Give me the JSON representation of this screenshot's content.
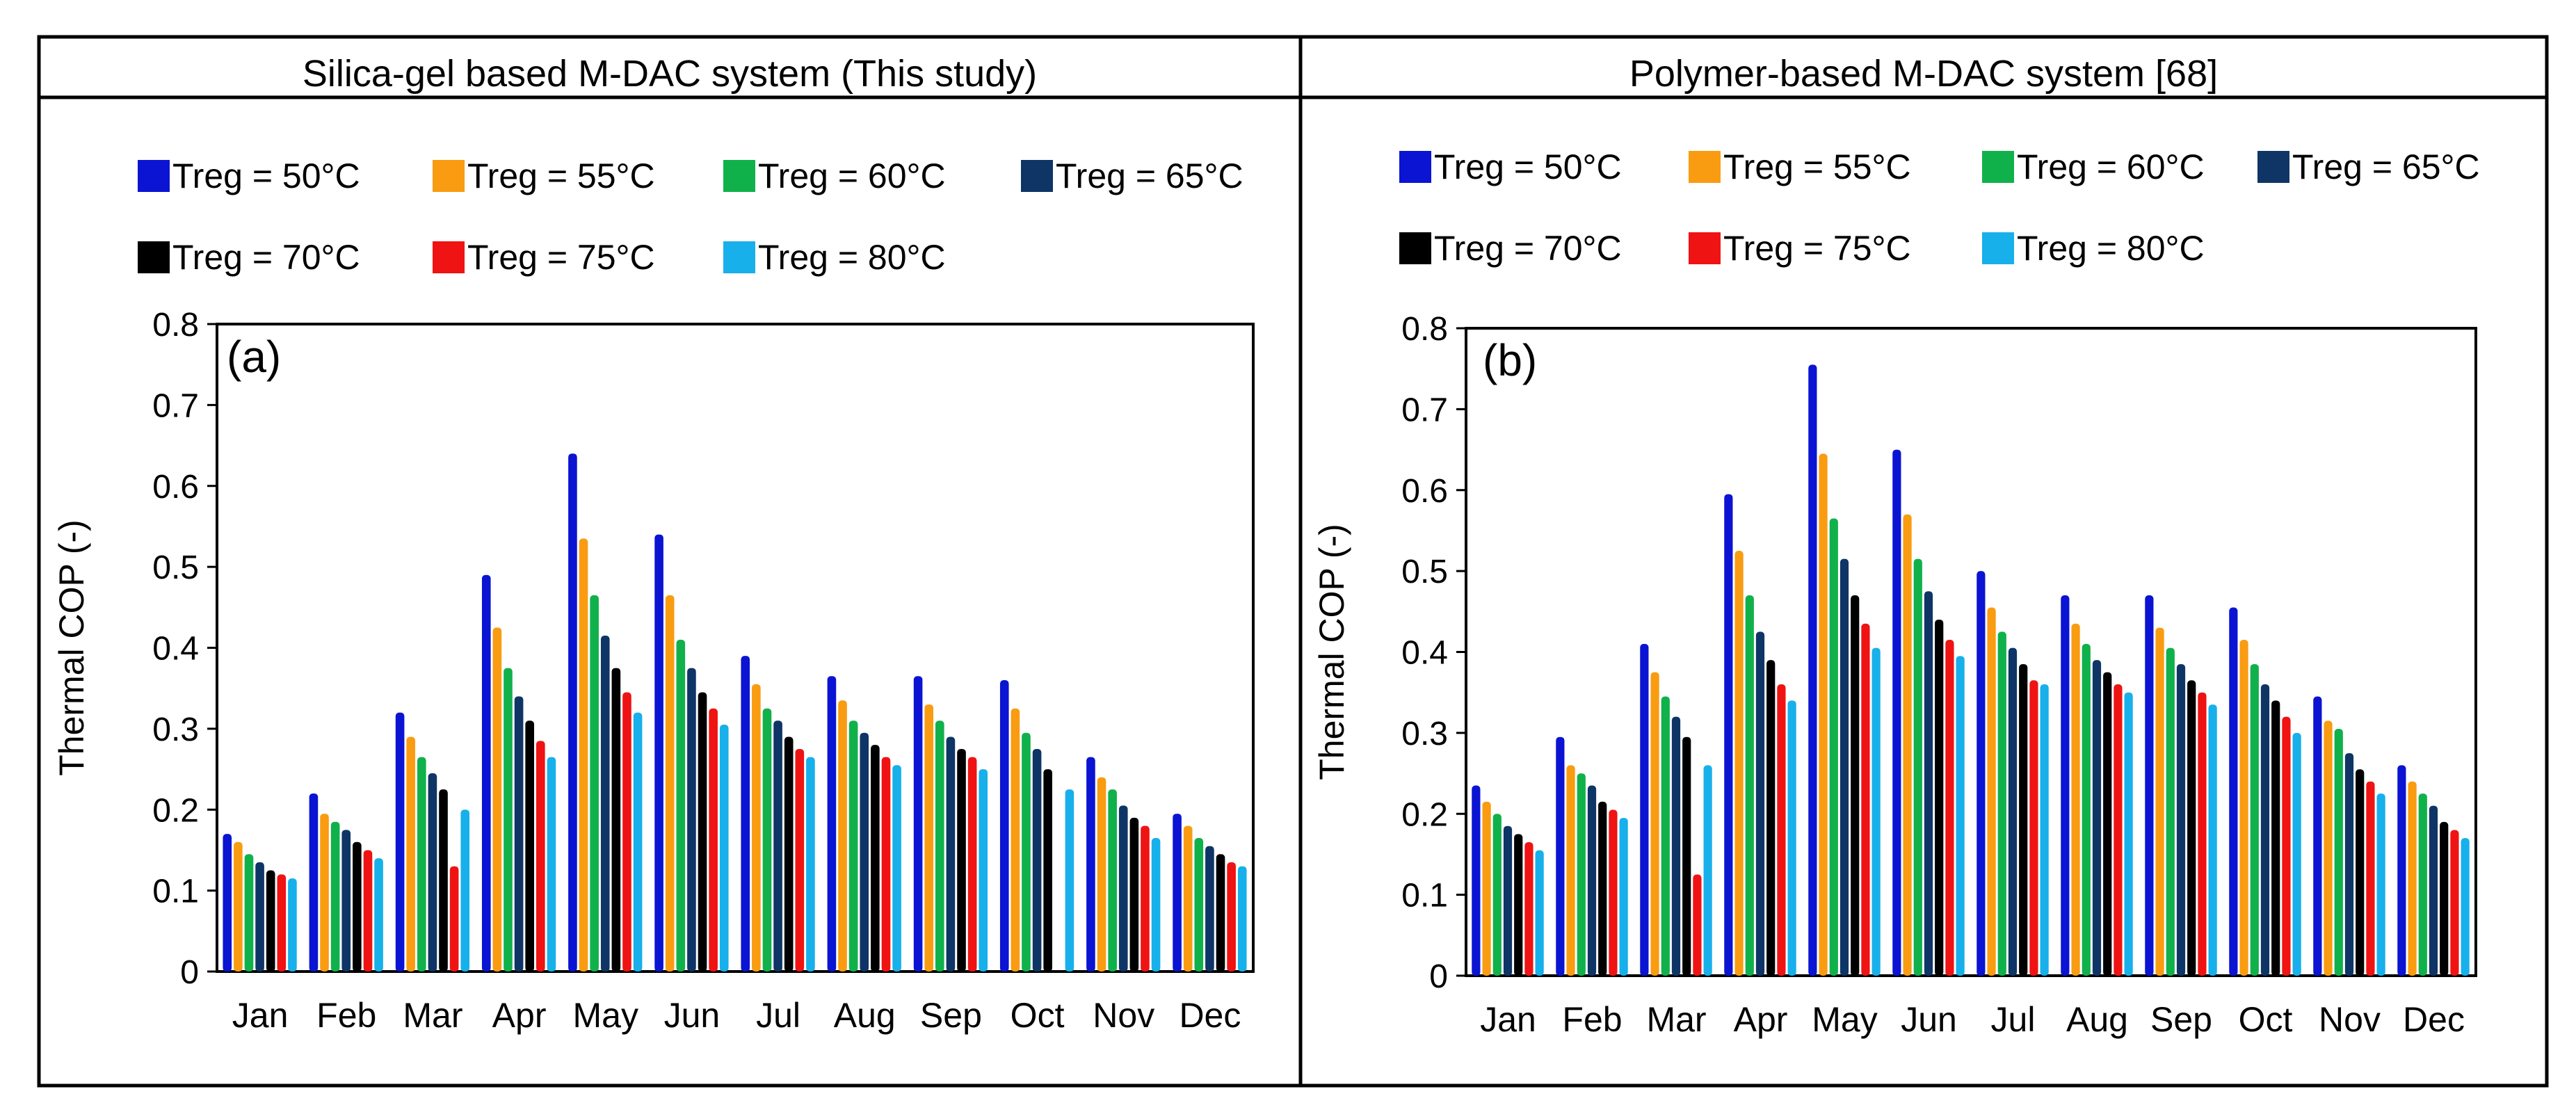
{
  "series_colors": [
    "#0a14d2",
    "#f99c12",
    "#10b14b",
    "#0e3565",
    "#000000",
    "#ef1313",
    "#17b0ea"
  ],
  "panels": [
    {
      "header": "Silica-gel based M-DAC system (This study)",
      "legend": [
        "Treg = 50°C",
        "Treg = 55°C",
        "Treg = 60°C",
        "Treg = 65°C",
        "Treg = 70°C",
        "Treg = 75°C",
        "Treg = 80°C"
      ]
    },
    {
      "header": "Polymer-based M-DAC system [68]",
      "legend": [
        "Treg = 50°C",
        "Treg = 55°C",
        "Treg = 60°C",
        "Treg = 65°C",
        "Treg = 70°C",
        "Treg = 75°C",
        "Treg = 80°C"
      ]
    }
  ],
  "chart_data": [
    {
      "type": "bar",
      "panel_label": "(a)",
      "title": "Silica-gel based M-DAC system (This study)",
      "xlabel": "",
      "ylabel": "Thermal COP (-)",
      "ylim": [
        0,
        0.8
      ],
      "yticks": [
        "0",
        "0.1",
        "0.2",
        "0.3",
        "0.4",
        "0.5",
        "0.6",
        "0.7",
        "0.8"
      ],
      "categories": [
        "Jan",
        "Feb",
        "Mar",
        "Apr",
        "May",
        "Jun",
        "Jul",
        "Aug",
        "Sep",
        "Oct",
        "Nov",
        "Dec"
      ],
      "series": [
        {
          "name": "Treg = 50°C",
          "values": [
            0.17,
            0.22,
            0.32,
            0.49,
            0.64,
            0.54,
            0.39,
            0.365,
            0.365,
            0.36,
            0.265,
            0.195
          ]
        },
        {
          "name": "Treg = 55°C",
          "values": [
            0.16,
            0.195,
            0.29,
            0.425,
            0.535,
            0.465,
            0.355,
            0.335,
            0.33,
            0.325,
            0.24,
            0.18
          ]
        },
        {
          "name": "Treg = 60°C",
          "values": [
            0.145,
            0.185,
            0.265,
            0.375,
            0.465,
            0.41,
            0.325,
            0.31,
            0.31,
            0.295,
            0.225,
            0.165
          ]
        },
        {
          "name": "Treg = 65°C",
          "values": [
            0.135,
            0.175,
            0.245,
            0.34,
            0.415,
            0.375,
            0.31,
            0.295,
            0.29,
            0.275,
            0.205,
            0.155
          ]
        },
        {
          "name": "Treg = 70°C",
          "values": [
            0.125,
            0.16,
            0.225,
            0.31,
            0.375,
            0.345,
            0.29,
            0.28,
            0.275,
            0.25,
            0.19,
            0.145
          ]
        },
        {
          "name": "Treg = 75°C",
          "values": [
            0.12,
            0.15,
            0.13,
            0.285,
            0.345,
            0.325,
            0.275,
            0.265,
            0.265,
            null,
            0.18,
            0.135
          ]
        },
        {
          "name": "Treg = 80°C",
          "values": [
            0.115,
            0.14,
            0.2,
            0.265,
            0.32,
            0.305,
            0.265,
            0.255,
            0.25,
            0.225,
            0.165,
            0.13
          ]
        }
      ]
    },
    {
      "type": "bar",
      "panel_label": "(b)",
      "title": "Polymer-based M-DAC system [68]",
      "xlabel": "",
      "ylabel": "Thermal COP (-)",
      "ylim": [
        0,
        0.8
      ],
      "yticks": [
        "0",
        "0.1",
        "0.2",
        "0.3",
        "0.4",
        "0.5",
        "0.6",
        "0.7",
        "0.8"
      ],
      "categories": [
        "Jan",
        "Feb",
        "Mar",
        "Apr",
        "May",
        "Jun",
        "Jul",
        "Aug",
        "Sep",
        "Oct",
        "Nov",
        "Dec"
      ],
      "series": [
        {
          "name": "Treg = 50°C",
          "values": [
            0.235,
            0.295,
            0.41,
            0.595,
            0.755,
            0.65,
            0.5,
            0.47,
            0.47,
            0.455,
            0.345,
            0.26
          ]
        },
        {
          "name": "Treg = 55°C",
          "values": [
            0.215,
            0.26,
            0.375,
            0.525,
            0.645,
            0.57,
            0.455,
            0.435,
            0.43,
            0.415,
            0.315,
            0.24
          ]
        },
        {
          "name": "Treg = 60°C",
          "values": [
            0.2,
            0.25,
            0.345,
            0.47,
            0.565,
            0.515,
            0.425,
            0.41,
            0.405,
            0.385,
            0.305,
            0.225
          ]
        },
        {
          "name": "Treg = 65°C",
          "values": [
            0.185,
            0.235,
            0.32,
            0.425,
            0.515,
            0.475,
            0.405,
            0.39,
            0.385,
            0.36,
            0.275,
            0.21
          ]
        },
        {
          "name": "Treg = 70°C",
          "values": [
            0.175,
            0.215,
            0.295,
            0.39,
            0.47,
            0.44,
            0.385,
            0.375,
            0.365,
            0.34,
            0.255,
            0.19
          ]
        },
        {
          "name": "Treg = 75°C",
          "values": [
            0.165,
            0.205,
            0.125,
            0.36,
            0.435,
            0.415,
            0.365,
            0.36,
            0.35,
            0.32,
            0.24,
            0.18
          ]
        },
        {
          "name": "Treg = 80°C",
          "values": [
            0.155,
            0.195,
            0.26,
            0.34,
            0.405,
            0.395,
            0.36,
            0.35,
            0.335,
            0.3,
            0.225,
            0.17
          ]
        }
      ]
    }
  ]
}
